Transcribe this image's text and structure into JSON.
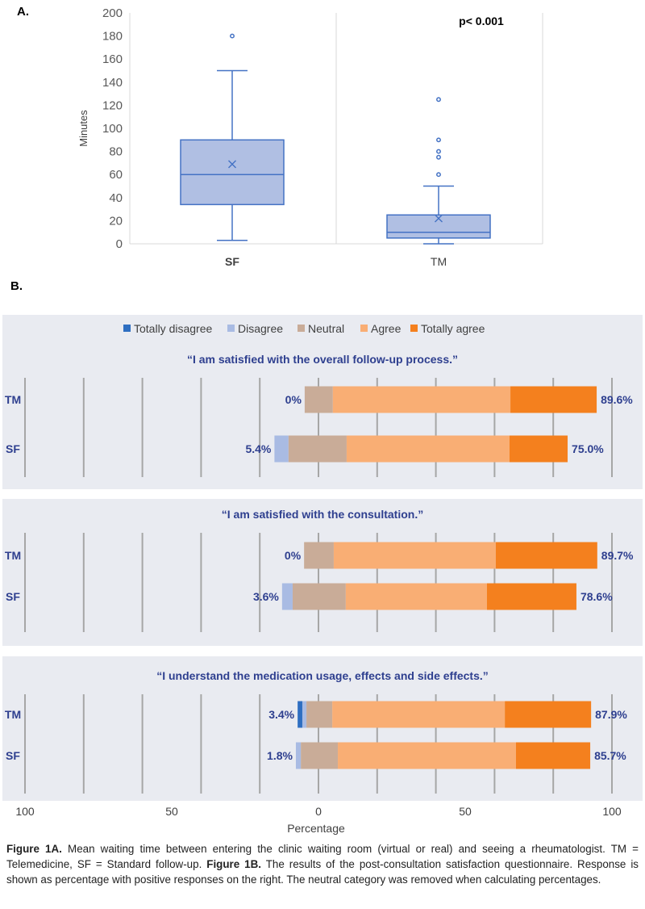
{
  "panel_labels": {
    "a": "A.",
    "b": "B."
  },
  "chart_data": [
    {
      "type": "boxplot",
      "title": "",
      "ylabel": "Minutes",
      "xlabel": "",
      "ylim": [
        0,
        200
      ],
      "yticks": [
        0,
        20,
        40,
        60,
        80,
        100,
        120,
        140,
        160,
        180,
        200
      ],
      "annotation": "p< 0.001",
      "color": "#4472C4",
      "fill": "#B0BFE3",
      "groups": [
        {
          "name": "SF",
          "min": 3,
          "q1": 34,
          "median": 60,
          "q3": 90,
          "max": 150,
          "mean": 69,
          "outliers": [
            180
          ]
        },
        {
          "name": "TM",
          "min": 0,
          "q1": 5,
          "median": 10,
          "q3": 25,
          "max": 50,
          "mean": 22,
          "outliers": [
            60,
            75,
            80,
            90,
            125
          ]
        }
      ]
    },
    {
      "type": "bar",
      "orientation": "horizontal-diverging-stacked",
      "xlabel": "Percentage",
      "xlim": [
        -100,
        100
      ],
      "xticks": [
        100,
        50,
        0,
        50,
        100
      ],
      "xtick_values": [
        -100,
        -50,
        0,
        50,
        100
      ],
      "grid": "vertical",
      "grid_values": [
        -100,
        -80,
        -60,
        -40,
        -20,
        0,
        20,
        40,
        60,
        80,
        100
      ],
      "legend_position": "top",
      "legend": [
        {
          "name": "Totally disagree",
          "color": "#2E6EC1"
        },
        {
          "name": "Disagree",
          "color": "#A9BBE3"
        },
        {
          "name": "Neutral",
          "color": "#C9AC98"
        },
        {
          "name": "Agree",
          "color": "#F9AE74"
        },
        {
          "name": "Totally agree",
          "color": "#F4801E"
        }
      ],
      "label_color": "#2E3F8F",
      "questions": [
        {
          "title": "“I am satisfied with the overall follow-up process.”",
          "rows": [
            {
              "group": "TM",
              "negative_label": "0%",
              "positive_label": "89.6%",
              "segments": {
                "Totally disagree": 0,
                "Disagree": 0,
                "Neutral": 9.6,
                "Agree": 60.5,
                "Totally agree": 29.4
              },
              "start": -4.7
            },
            {
              "group": "SF",
              "negative_label": "5.4%",
              "positive_label": "75.0%",
              "segments": {
                "Totally disagree": 0,
                "Disagree": 4.8,
                "Neutral": 19.8,
                "Agree": 55.5,
                "Totally agree": 19.8
              },
              "start": -15.0
            }
          ]
        },
        {
          "title": "“I am satisfied with the consultation.”",
          "rows": [
            {
              "group": "TM",
              "negative_label": "0%",
              "positive_label": "89.7%",
              "segments": {
                "Totally disagree": 0,
                "Disagree": 0,
                "Neutral": 10.1,
                "Agree": 55.2,
                "Totally agree": 34.6
              },
              "start": -4.9
            },
            {
              "group": "SF",
              "negative_label": "3.6%",
              "positive_label": "78.6%",
              "segments": {
                "Totally disagree": 0,
                "Disagree": 3.6,
                "Neutral": 18.1,
                "Agree": 48.1,
                "Totally agree": 30.5
              },
              "start": -12.4
            }
          ]
        },
        {
          "title": "“I understand the medication usage, effects and side effects.”",
          "rows": [
            {
              "group": "TM",
              "negative_label": "3.4%",
              "positive_label": "87.9%",
              "segments": {
                "Totally disagree": 1.6,
                "Disagree": 1.4,
                "Neutral": 8.8,
                "Agree": 58.8,
                "Totally agree": 29.4
              },
              "start": -7.1
            },
            {
              "group": "SF",
              "negative_label": "1.8%",
              "positive_label": "85.7%",
              "segments": {
                "Totally disagree": 0,
                "Disagree": 1.7,
                "Neutral": 12.6,
                "Agree": 60.7,
                "Totally agree": 25.3
              },
              "start": -7.7
            }
          ]
        }
      ]
    }
  ],
  "caption": {
    "fig1a_label": "Figure 1A.",
    "fig1a_text": " Mean waiting time between entering the clinic waiting room (virtual or real) and seeing a rheumatologist. TM = Telemedicine, SF = Standard follow-up. ",
    "fig1b_label": "Figure 1B.",
    "fig1b_text": " The results of the post-consultation satisfaction questionnaire. Response is shown as percentage with positive responses on the right. The neutral category was removed when calculating percentages."
  }
}
